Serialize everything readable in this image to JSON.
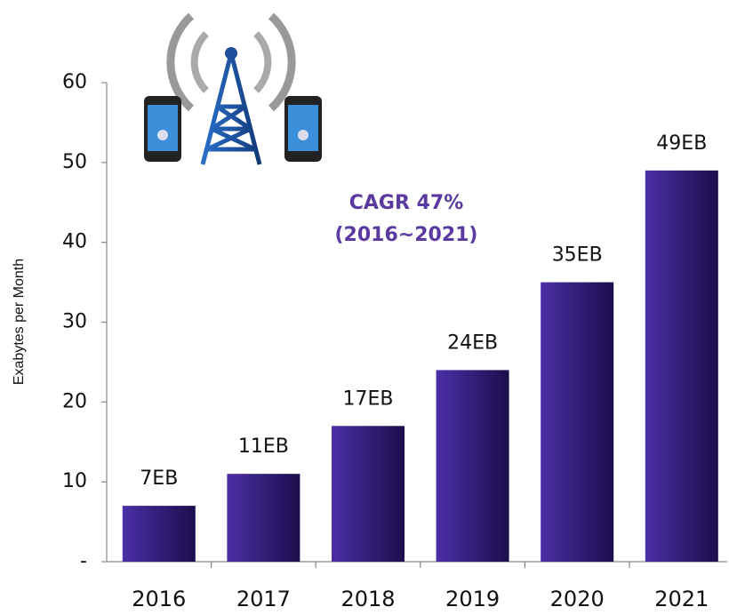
{
  "chart_data": {
    "type": "bar",
    "ylabel": "Exabytes per Month",
    "annotations": [
      "CAGR 47%",
      "(2016~2021)"
    ],
    "categories": [
      "2016",
      "2017",
      "2018",
      "2019",
      "2020",
      "2021"
    ],
    "values": [
      7,
      11,
      17,
      24,
      35,
      49
    ],
    "value_labels": [
      "7EB",
      "11EB",
      "17EB",
      "24EB",
      "35EB",
      "49EB"
    ],
    "color": "#3a2288",
    "ylim": [
      0,
      60
    ],
    "yticks": [
      {
        "value": 0,
        "label": "-"
      },
      10,
      20,
      30,
      40,
      50,
      60
    ],
    "grid": false
  }
}
